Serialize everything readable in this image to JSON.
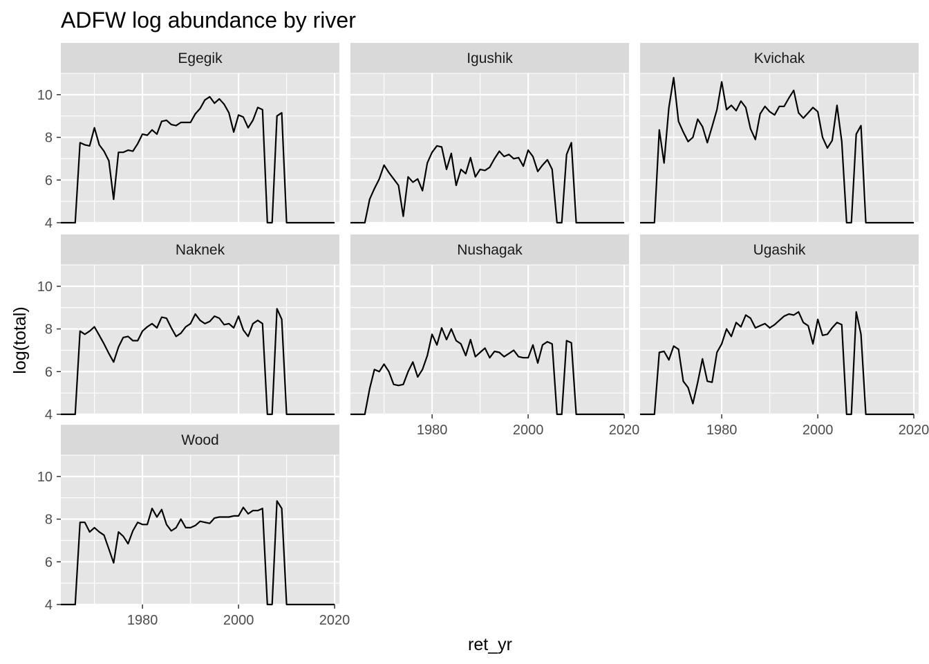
{
  "chart_data": {
    "type": "line",
    "title": "ADFW log abundance by river",
    "xlabel": "ret_yr",
    "ylabel": "log(total)",
    "xlim": [
      1963,
      2021
    ],
    "ylim": [
      4,
      11
    ],
    "x_ticks": [
      1980,
      2000,
      2020
    ],
    "y_ticks": [
      4,
      6,
      8,
      10
    ],
    "grid": true,
    "layout": "facet_wrap 3 columns",
    "colors": {
      "panel_bg": "#e5e5e5",
      "strip_bg": "#d9d9d9",
      "grid": "#ffffff",
      "line": "#000000",
      "tick_text": "#4d4d4d"
    },
    "x": [
      1963,
      1964,
      1965,
      1966,
      1967,
      1968,
      1969,
      1970,
      1971,
      1972,
      1973,
      1974,
      1975,
      1976,
      1977,
      1978,
      1979,
      1980,
      1981,
      1982,
      1983,
      1984,
      1985,
      1986,
      1987,
      1988,
      1989,
      1990,
      1991,
      1992,
      1993,
      1994,
      1995,
      1996,
      1997,
      1998,
      1999,
      2000,
      2001,
      2002,
      2003,
      2004,
      2005,
      2006,
      2007,
      2008,
      2009,
      2010,
      2011,
      2012,
      2013,
      2014,
      2015,
      2016,
      2017,
      2018,
      2019,
      2020
    ],
    "series": [
      {
        "name": "Egegik",
        "values": [
          4,
          4,
          4,
          4,
          7.75,
          7.65,
          7.6,
          8.45,
          7.65,
          7.35,
          6.9,
          5.1,
          7.3,
          7.3,
          7.4,
          7.35,
          7.7,
          8.15,
          8.1,
          8.35,
          8.15,
          8.75,
          8.8,
          8.6,
          8.55,
          8.7,
          8.7,
          8.7,
          9.1,
          9.35,
          9.75,
          9.9,
          9.6,
          9.8,
          9.55,
          9.15,
          8.25,
          9.05,
          8.95,
          8.45,
          8.8,
          9.4,
          9.3,
          4,
          4,
          9,
          9.15,
          4,
          4,
          4,
          4,
          4,
          4,
          4,
          4,
          4,
          4,
          4
        ]
      },
      {
        "name": "Igushik",
        "values": [
          4,
          4,
          4,
          4,
          5.1,
          5.6,
          6.05,
          6.7,
          6.35,
          6.05,
          5.75,
          4.3,
          6.15,
          5.9,
          6.05,
          5.5,
          6.8,
          7.3,
          7.6,
          7.55,
          6.5,
          7.25,
          5.75,
          6.5,
          6.3,
          7.05,
          6.15,
          6.5,
          6.45,
          6.6,
          7,
          7.35,
          7.1,
          7.2,
          7,
          7.05,
          6.65,
          7.4,
          7.1,
          6.4,
          6.7,
          6.95,
          6.5,
          4,
          4,
          7.2,
          7.75,
          4,
          4,
          4,
          4,
          4,
          4,
          4,
          4,
          4,
          4,
          4
        ]
      },
      {
        "name": "Kvichak",
        "values": [
          4,
          4,
          4,
          4,
          8.35,
          6.8,
          9.4,
          10.8,
          8.75,
          8.25,
          7.8,
          8,
          8.85,
          8.5,
          7.75,
          8.5,
          9.3,
          10.6,
          9.3,
          9.5,
          9.25,
          9.7,
          9.4,
          8.4,
          7.9,
          9.1,
          9.45,
          9.2,
          9.05,
          9.45,
          9.45,
          9.85,
          10.2,
          9.15,
          8.9,
          9.15,
          9.4,
          9.2,
          8,
          7.5,
          7.85,
          9.5,
          7.8,
          4,
          4,
          8.15,
          8.55,
          4,
          4,
          4,
          4,
          4,
          4,
          4,
          4,
          4,
          4,
          4
        ]
      },
      {
        "name": "Naknek",
        "values": [
          4,
          4,
          4,
          4,
          7.9,
          7.75,
          7.9,
          8.1,
          7.7,
          7.3,
          6.85,
          6.45,
          7.15,
          7.6,
          7.65,
          7.45,
          7.45,
          7.9,
          8.1,
          8.25,
          8.05,
          8.55,
          8.5,
          8.05,
          7.65,
          7.8,
          8.1,
          8.25,
          8.7,
          8.4,
          8.25,
          8.35,
          8.6,
          8.5,
          8.2,
          8.25,
          8.05,
          8.6,
          7.95,
          7.65,
          8.25,
          8.4,
          8.25,
          4,
          4,
          8.95,
          8.45,
          4,
          4,
          4,
          4,
          4,
          4,
          4,
          4,
          4,
          4,
          4
        ]
      },
      {
        "name": "Nushagak",
        "values": [
          4,
          4,
          4,
          4,
          5.2,
          6.1,
          6,
          6.35,
          6,
          5.4,
          5.35,
          5.4,
          6,
          6.45,
          5.75,
          6.1,
          6.75,
          7.75,
          7.25,
          8.05,
          7.5,
          8,
          7.45,
          7.3,
          6.75,
          7.5,
          6.7,
          6.9,
          7.1,
          6.65,
          6.95,
          6.9,
          6.7,
          6.85,
          7,
          6.7,
          6.65,
          6.65,
          7.25,
          6.4,
          7.25,
          7.4,
          7.3,
          4,
          4,
          7.45,
          7.35,
          4,
          4,
          4,
          4,
          4,
          4,
          4,
          4,
          4,
          4,
          4
        ]
      },
      {
        "name": "Ugashik",
        "values": [
          4,
          4,
          4,
          4,
          6.9,
          6.95,
          6.55,
          7.2,
          7.05,
          5.55,
          5.25,
          4.5,
          5.5,
          6.6,
          5.55,
          5.5,
          6.9,
          7.3,
          8,
          7.65,
          8.3,
          8.1,
          8.65,
          8.5,
          8.05,
          8.15,
          8.25,
          8.05,
          8.2,
          8.4,
          8.6,
          8.7,
          8.65,
          8.8,
          8.3,
          8.15,
          7.3,
          8.45,
          7.7,
          7.75,
          8.05,
          8.3,
          8.2,
          4,
          4,
          8.8,
          7.75,
          4,
          4,
          4,
          4,
          4,
          4,
          4,
          4,
          4,
          4,
          4
        ]
      },
      {
        "name": "Wood",
        "values": [
          4,
          4,
          4,
          4,
          7.85,
          7.85,
          7.4,
          7.6,
          7.4,
          7.25,
          6.6,
          5.95,
          7.4,
          7.2,
          6.85,
          7.45,
          7.85,
          7.75,
          7.75,
          8.5,
          8.1,
          8.45,
          7.75,
          7.45,
          7.6,
          8,
          7.6,
          7.6,
          7.7,
          7.9,
          7.85,
          7.8,
          8.05,
          8.1,
          8.1,
          8.1,
          8.15,
          8.15,
          8.55,
          8.25,
          8.4,
          8.4,
          8.5,
          4,
          4,
          8.85,
          8.5,
          4,
          4,
          4,
          4,
          4,
          4,
          4,
          4,
          4,
          4,
          4
        ]
      }
    ]
  }
}
